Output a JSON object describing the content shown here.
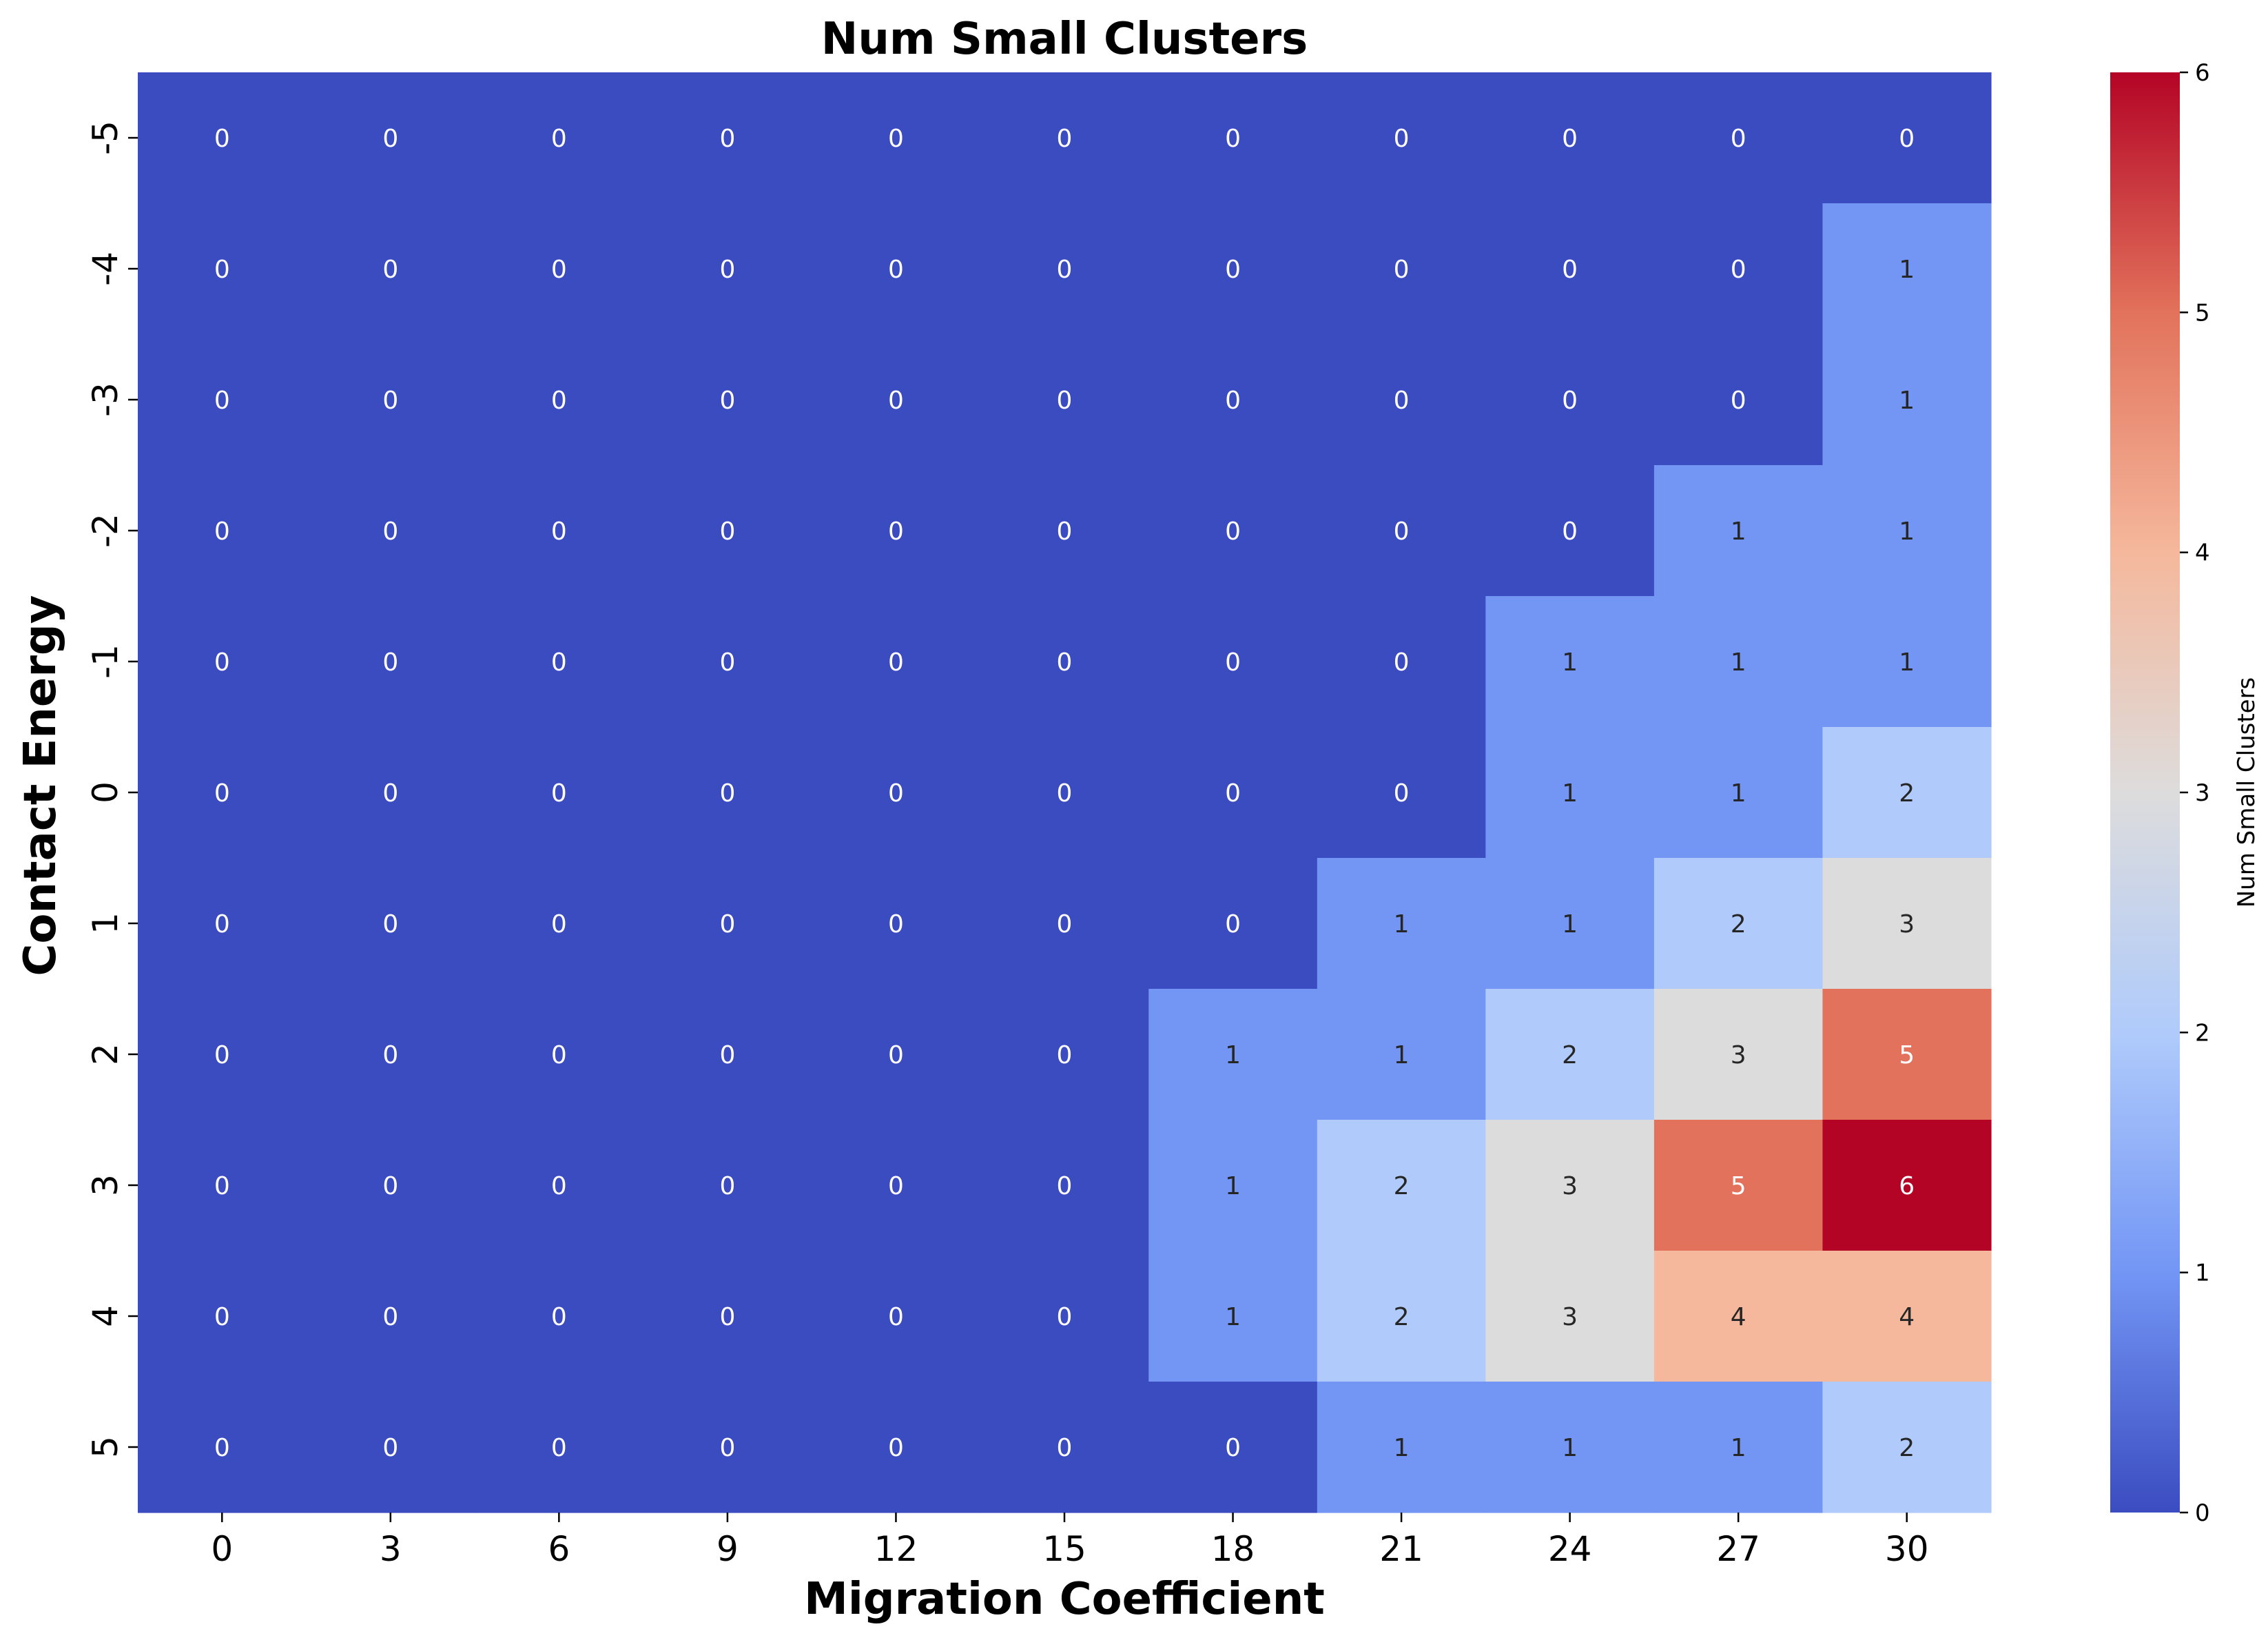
{
  "chart_data": {
    "type": "heatmap",
    "title": "Num Small Clusters",
    "xlabel": "Migration Coefficient",
    "ylabel": "Contact Energy",
    "x": [
      "0",
      "3",
      "6",
      "9",
      "12",
      "15",
      "18",
      "21",
      "24",
      "27",
      "30"
    ],
    "y": [
      "-5",
      "-4",
      "-3",
      "-2",
      "-1",
      "0",
      "1",
      "2",
      "3",
      "4",
      "5"
    ],
    "values": [
      [
        0,
        0,
        0,
        0,
        0,
        0,
        0,
        0,
        0,
        0,
        0
      ],
      [
        0,
        0,
        0,
        0,
        0,
        0,
        0,
        0,
        0,
        0,
        1
      ],
      [
        0,
        0,
        0,
        0,
        0,
        0,
        0,
        0,
        0,
        0,
        1
      ],
      [
        0,
        0,
        0,
        0,
        0,
        0,
        0,
        0,
        0,
        1,
        1
      ],
      [
        0,
        0,
        0,
        0,
        0,
        0,
        0,
        0,
        1,
        1,
        1
      ],
      [
        0,
        0,
        0,
        0,
        0,
        0,
        0,
        0,
        1,
        1,
        2
      ],
      [
        0,
        0,
        0,
        0,
        0,
        0,
        0,
        1,
        1,
        2,
        3
      ],
      [
        0,
        0,
        0,
        0,
        0,
        0,
        1,
        1,
        2,
        3,
        5
      ],
      [
        0,
        0,
        0,
        0,
        0,
        0,
        1,
        2,
        3,
        5,
        6
      ],
      [
        0,
        0,
        0,
        0,
        0,
        0,
        1,
        2,
        3,
        4,
        4
      ],
      [
        0,
        0,
        0,
        0,
        0,
        0,
        0,
        1,
        1,
        1,
        2
      ]
    ],
    "colorbar": {
      "label": "Num Small Clusters",
      "ticks": [
        "0",
        "1",
        "2",
        "3",
        "4",
        "5",
        "6"
      ],
      "range": [
        0,
        6
      ],
      "colormap": "coolwarm"
    },
    "annotations": true,
    "grid": false
  }
}
